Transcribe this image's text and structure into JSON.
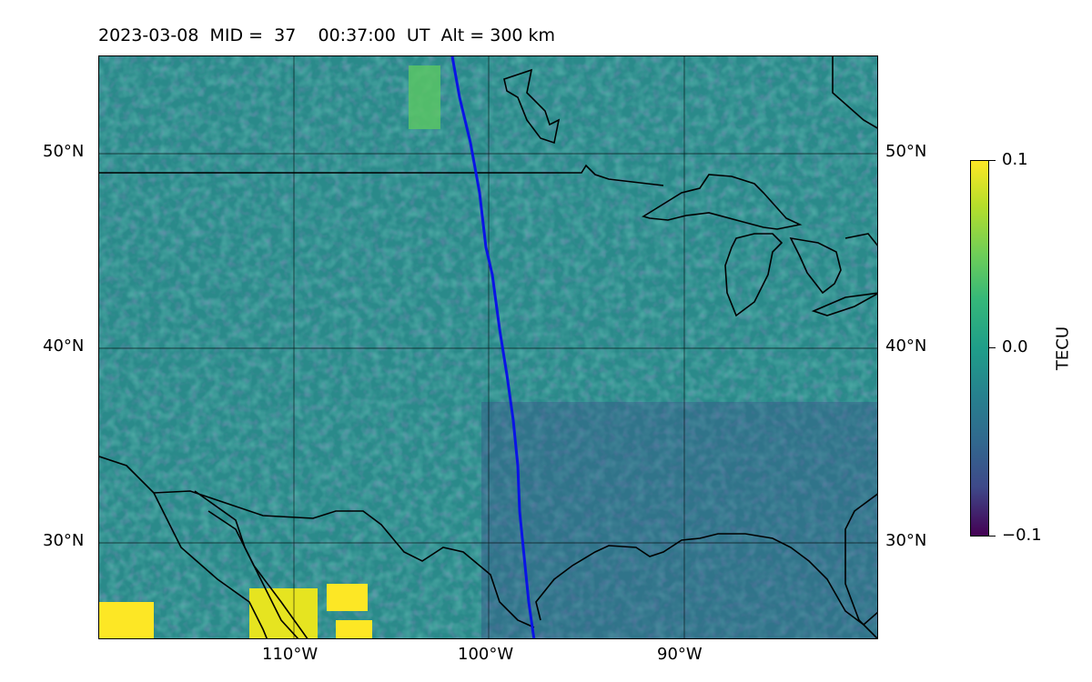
{
  "title": "2023-03-08  MID =  37    00:37:00  UT  Alt = 300 km",
  "lat_labels_left": [
    "50°N",
    "40°N",
    "30°N"
  ],
  "lat_labels_right": [
    "50°N",
    "40°N",
    "30°N"
  ],
  "lon_labels": [
    "110°W",
    "100°W",
    "90°W"
  ],
  "colorbar": {
    "label": "TECU",
    "ticks": [
      "0.1",
      "0.0",
      "−0.1"
    ],
    "colormap": "viridis"
  },
  "map": {
    "lon_range": [
      -120,
      -80
    ],
    "lat_range": [
      25,
      55
    ],
    "gridlines": true,
    "track_color": "#0a14e6",
    "background_color": "#2a8a8a"
  }
}
